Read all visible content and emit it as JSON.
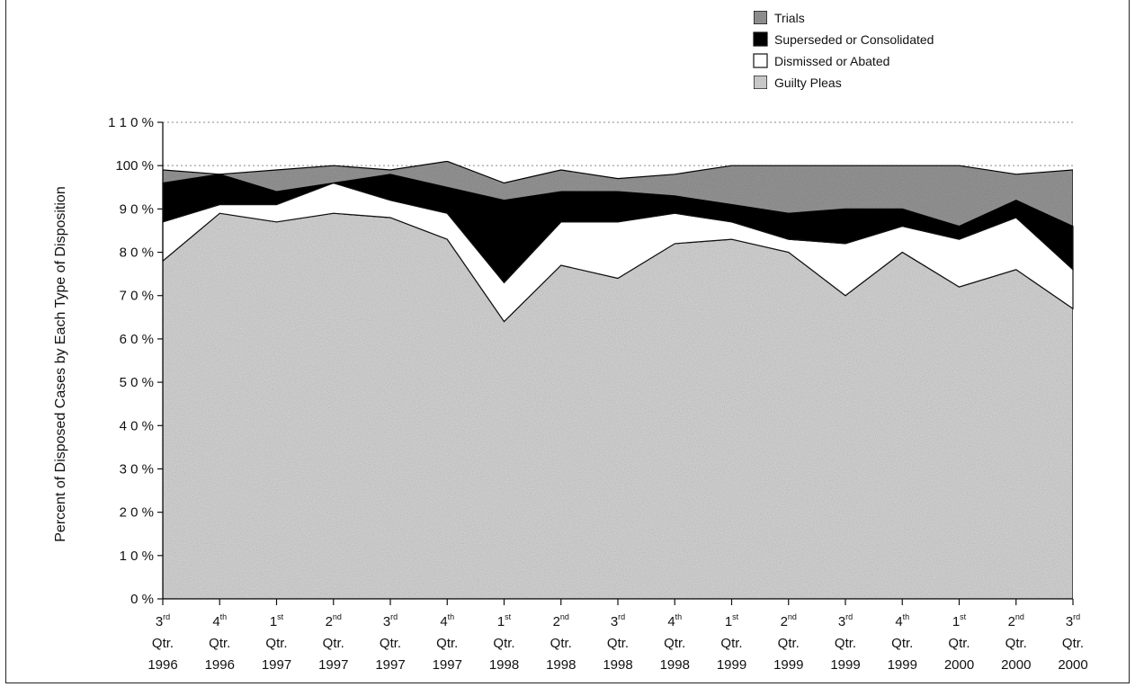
{
  "chart_data": {
    "type": "area",
    "stacked": true,
    "ylabel": "Percent of Disposed Cases by Each Type of Disposition",
    "xlabel": "",
    "ylim": [
      0,
      110
    ],
    "y_ticks": [
      "0 %",
      "1 0 %",
      "2 0 %",
      "3 0 %",
      "4 0 %",
      "5 0 %",
      "6 0 %",
      "7 0 %",
      "8 0 %",
      "9 0 %",
      "100 %",
      "1 1 0 %"
    ],
    "categories": [
      {
        "ord": "3",
        "sup": "rd",
        "qtr": "Qtr.",
        "year": "1996"
      },
      {
        "ord": "4",
        "sup": "th",
        "qtr": "Qtr.",
        "year": "1996"
      },
      {
        "ord": "1",
        "sup": "st",
        "qtr": "Qtr.",
        "year": "1997"
      },
      {
        "ord": "2",
        "sup": "nd",
        "qtr": "Qtr.",
        "year": "1997"
      },
      {
        "ord": "3",
        "sup": "rd",
        "qtr": "Qtr.",
        "year": "1997"
      },
      {
        "ord": "4",
        "sup": "th",
        "qtr": "Qtr.",
        "year": "1997"
      },
      {
        "ord": "1",
        "sup": "st",
        "qtr": "Qtr.",
        "year": "1998"
      },
      {
        "ord": "2",
        "sup": "nd",
        "qtr": "Qtr.",
        "year": "1998"
      },
      {
        "ord": "3",
        "sup": "rd",
        "qtr": "Qtr.",
        "year": "1998"
      },
      {
        "ord": "4",
        "sup": "th",
        "qtr": "Qtr.",
        "year": "1998"
      },
      {
        "ord": "1",
        "sup": "st",
        "qtr": "Qtr.",
        "year": "1999"
      },
      {
        "ord": "2",
        "sup": "nd",
        "qtr": "Qtr.",
        "year": "1999"
      },
      {
        "ord": "3",
        "sup": "rd",
        "qtr": "Qtr.",
        "year": "1999"
      },
      {
        "ord": "4",
        "sup": "th",
        "qtr": "Qtr.",
        "year": "1999"
      },
      {
        "ord": "1",
        "sup": "st",
        "qtr": "Qtr.",
        "year": "2000"
      },
      {
        "ord": "2",
        "sup": "nd",
        "qtr": "Qtr.",
        "year": "2000"
      },
      {
        "ord": "3",
        "sup": "rd",
        "qtr": "Qtr.",
        "year": "2000"
      }
    ],
    "series": [
      {
        "name": "Guilty Pleas",
        "color": "#d9d9d9",
        "values": [
          78,
          89,
          87,
          89,
          88,
          83,
          64,
          77,
          74,
          82,
          83,
          80,
          70,
          80,
          72,
          76,
          67
        ]
      },
      {
        "name": "Dismissed or Abated",
        "color": "#ffffff",
        "values": [
          9,
          2,
          4,
          7,
          4,
          6,
          9,
          10,
          13,
          7,
          4,
          3,
          12,
          6,
          11,
          12,
          9
        ]
      },
      {
        "name": "Superseded or Consolidated",
        "color": "#000000",
        "values": [
          9,
          7,
          3,
          0,
          6,
          6,
          19,
          7,
          7,
          4,
          4,
          6,
          8,
          4,
          3,
          4,
          10
        ]
      },
      {
        "name": "Trials",
        "color": "#9a9a9a",
        "values": [
          3,
          0,
          5,
          4,
          1,
          6,
          4,
          5,
          3,
          5,
          9,
          11,
          10,
          10,
          14,
          6,
          13
        ]
      }
    ],
    "legend": [
      "Trials",
      "Superseded or Consolidated",
      "Dismissed or Abated",
      "Guilty Pleas"
    ],
    "legend_position": "top-right",
    "grid": {
      "y": true,
      "style": "dotted",
      "at": [
        100,
        110
      ]
    }
  }
}
